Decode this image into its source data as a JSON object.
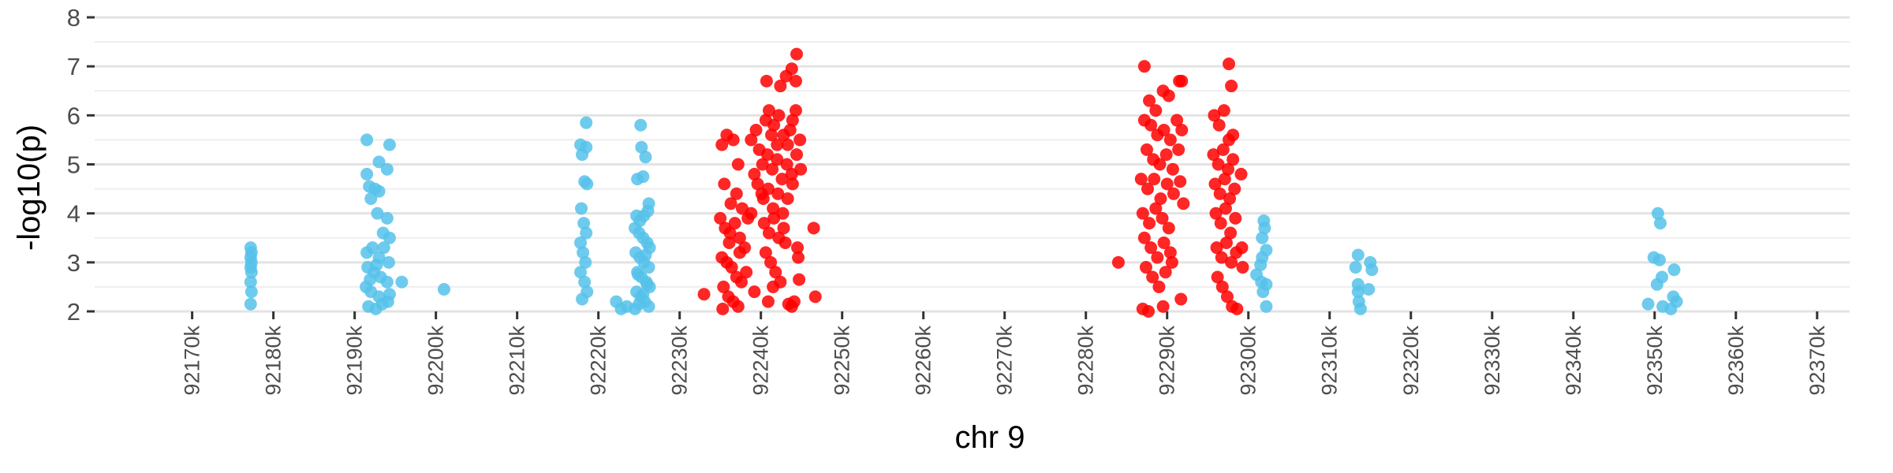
{
  "chart_data": {
    "type": "scatter",
    "title": "",
    "xlabel": "chr 9",
    "ylabel": "-log10(p)",
    "xlim": [
      92158000,
      92374000
    ],
    "ylim": [
      2,
      8
    ],
    "grid": "horizontal",
    "x_tick_labels": [
      "92170k",
      "92180k",
      "92190k",
      "92200k",
      "92210k",
      "92220k",
      "92230k",
      "92240k",
      "92250k",
      "92260k",
      "92270k",
      "92280k",
      "92290k",
      "92300k",
      "92310k",
      "92320k",
      "92330k",
      "92340k",
      "92350k",
      "92360k",
      "92370k"
    ],
    "y_tick_labels": [
      "2",
      "3",
      "4",
      "5",
      "6",
      "7",
      "8"
    ],
    "colors": {
      "background_snps": "#56c2ea",
      "highlighted_snps": "#ff0000"
    },
    "series": [
      {
        "color": "#56c2ea",
        "points": [
          [
            92177200,
            3.3
          ],
          [
            92177300,
            3.2
          ],
          [
            92177200,
            3.1
          ],
          [
            92177300,
            3.0
          ],
          [
            92177200,
            2.9
          ],
          [
            92177300,
            2.8
          ],
          [
            92177200,
            2.6
          ],
          [
            92177300,
            2.4
          ],
          [
            92177200,
            2.15
          ],
          [
            92191500,
            5.5
          ],
          [
            92193000,
            5.05
          ],
          [
            92194000,
            4.9
          ],
          [
            92194300,
            5.4
          ],
          [
            92191500,
            4.8
          ],
          [
            92191800,
            4.55
          ],
          [
            92192500,
            4.5
          ],
          [
            92193000,
            4.45
          ],
          [
            92192000,
            4.3
          ],
          [
            92192800,
            4.0
          ],
          [
            92193500,
            3.6
          ],
          [
            92194000,
            3.9
          ],
          [
            92191500,
            3.2
          ],
          [
            92192200,
            3.3
          ],
          [
            92193000,
            3.1
          ],
          [
            92194300,
            3.5
          ],
          [
            92191600,
            2.9
          ],
          [
            92192400,
            2.8
          ],
          [
            92193200,
            2.7
          ],
          [
            92194000,
            2.6
          ],
          [
            92191400,
            2.5
          ],
          [
            92192000,
            2.4
          ],
          [
            92193000,
            2.3
          ],
          [
            92194100,
            2.2
          ],
          [
            92191700,
            2.1
          ],
          [
            92192600,
            2.05
          ],
          [
            92193400,
            2.15
          ],
          [
            92194300,
            2.35
          ],
          [
            92191900,
            2.65
          ],
          [
            92192700,
            2.95
          ],
          [
            92193600,
            3.3
          ],
          [
            92194200,
            3.0
          ],
          [
            92195800,
            2.6
          ],
          [
            92201000,
            2.45
          ],
          [
            92217800,
            5.4
          ],
          [
            92218500,
            5.35
          ],
          [
            92218500,
            5.85
          ],
          [
            92218000,
            5.2
          ],
          [
            92218300,
            4.65
          ],
          [
            92218600,
            4.6
          ],
          [
            92217900,
            4.1
          ],
          [
            92218200,
            3.8
          ],
          [
            92218500,
            3.6
          ],
          [
            92217800,
            3.4
          ],
          [
            92218100,
            3.2
          ],
          [
            92218400,
            3.0
          ],
          [
            92217800,
            2.8
          ],
          [
            92218300,
            2.6
          ],
          [
            92218600,
            2.4
          ],
          [
            92218000,
            2.25
          ],
          [
            92222200,
            2.2
          ],
          [
            92222800,
            2.05
          ],
          [
            92223500,
            2.1
          ],
          [
            92225200,
            5.8
          ],
          [
            92225300,
            5.35
          ],
          [
            92225800,
            5.15
          ],
          [
            92224800,
            4.7
          ],
          [
            92225500,
            4.75
          ],
          [
            92226200,
            4.2
          ],
          [
            92224700,
            3.95
          ],
          [
            92225100,
            3.85
          ],
          [
            92225600,
            3.95
          ],
          [
            92226100,
            4.05
          ],
          [
            92224500,
            3.7
          ],
          [
            92225000,
            3.6
          ],
          [
            92225500,
            3.5
          ],
          [
            92226000,
            3.4
          ],
          [
            92226300,
            3.3
          ],
          [
            92224600,
            3.2
          ],
          [
            92225100,
            3.1
          ],
          [
            92225600,
            3.0
          ],
          [
            92226200,
            2.9
          ],
          [
            92224800,
            2.8
          ],
          [
            92225300,
            2.7
          ],
          [
            92225900,
            2.6
          ],
          [
            92226300,
            2.5
          ],
          [
            92224700,
            2.4
          ],
          [
            92225200,
            2.3
          ],
          [
            92225700,
            2.2
          ],
          [
            92226200,
            2.1
          ],
          [
            92224500,
            2.05
          ],
          [
            92225000,
            2.15
          ],
          [
            92225500,
            2.35
          ],
          [
            92226000,
            2.55
          ],
          [
            92224900,
            2.75
          ],
          [
            92225800,
            3.15
          ],
          [
            92301900,
            3.85
          ],
          [
            92302000,
            3.7
          ],
          [
            92301700,
            3.5
          ],
          [
            92302200,
            3.25
          ],
          [
            92301700,
            3.1
          ],
          [
            92301500,
            2.95
          ],
          [
            92301000,
            2.75
          ],
          [
            92301600,
            2.6
          ],
          [
            92302200,
            2.55
          ],
          [
            92301800,
            2.4
          ],
          [
            92302200,
            2.1
          ],
          [
            92313500,
            3.15
          ],
          [
            92313200,
            2.9
          ],
          [
            92315000,
            3.0
          ],
          [
            92315200,
            2.85
          ],
          [
            92313500,
            2.55
          ],
          [
            92313500,
            2.4
          ],
          [
            92314800,
            2.45
          ],
          [
            92313600,
            2.2
          ],
          [
            92313800,
            2.05
          ],
          [
            92350400,
            4.0
          ],
          [
            92350700,
            3.8
          ],
          [
            92349900,
            3.1
          ],
          [
            92350600,
            3.05
          ],
          [
            92352400,
            2.85
          ],
          [
            92350300,
            2.55
          ],
          [
            92350900,
            2.7
          ],
          [
            92352300,
            2.3
          ],
          [
            92352700,
            2.2
          ],
          [
            92349200,
            2.15
          ],
          [
            92351000,
            2.1
          ],
          [
            92352000,
            2.05
          ]
        ]
      },
      {
        "color": "#ff0000",
        "points": [
          [
            92233000,
            2.35
          ],
          [
            92235200,
            5.4
          ],
          [
            92235800,
            5.6
          ],
          [
            92236600,
            5.5
          ],
          [
            92237200,
            5.0
          ],
          [
            92235500,
            4.6
          ],
          [
            92236300,
            4.2
          ],
          [
            92237000,
            4.4
          ],
          [
            92237700,
            4.1
          ],
          [
            92235000,
            3.9
          ],
          [
            92235600,
            3.7
          ],
          [
            92236200,
            3.6
          ],
          [
            92236800,
            3.8
          ],
          [
            92237400,
            3.5
          ],
          [
            92238000,
            3.3
          ],
          [
            92235200,
            3.1
          ],
          [
            92235800,
            3.0
          ],
          [
            92236400,
            2.9
          ],
          [
            92237000,
            2.7
          ],
          [
            92237600,
            2.6
          ],
          [
            92238200,
            2.8
          ],
          [
            92235400,
            2.5
          ],
          [
            92236000,
            2.3
          ],
          [
            92236600,
            2.2
          ],
          [
            92237200,
            2.1
          ],
          [
            92235300,
            2.05
          ],
          [
            92236100,
            3.4
          ],
          [
            92237400,
            3.2
          ],
          [
            92238400,
            3.9
          ],
          [
            92238800,
            4.0
          ],
          [
            92239200,
            2.4
          ],
          [
            92238800,
            5.5
          ],
          [
            92239400,
            5.7
          ],
          [
            92239800,
            5.3
          ],
          [
            92239200,
            4.8
          ],
          [
            92239600,
            4.6
          ],
          [
            92240100,
            4.4
          ],
          [
            92240600,
            5.9
          ],
          [
            92241000,
            6.1
          ],
          [
            92241600,
            5.8
          ],
          [
            92242200,
            6.0
          ],
          [
            92242800,
            5.6
          ],
          [
            92243300,
            5.4
          ],
          [
            92243900,
            5.9
          ],
          [
            92244300,
            6.1
          ],
          [
            92244800,
            5.5
          ],
          [
            92240700,
            6.7
          ],
          [
            92242400,
            6.6
          ],
          [
            92243100,
            6.8
          ],
          [
            92243800,
            6.95
          ],
          [
            92244300,
            6.7
          ],
          [
            92244400,
            7.25
          ],
          [
            92240200,
            5.0
          ],
          [
            92240800,
            5.2
          ],
          [
            92241400,
            4.9
          ],
          [
            92242000,
            5.1
          ],
          [
            92242600,
            4.7
          ],
          [
            92243200,
            5.0
          ],
          [
            92243800,
            4.8
          ],
          [
            92244400,
            5.2
          ],
          [
            92244900,
            4.9
          ],
          [
            92240300,
            4.3
          ],
          [
            92240900,
            4.5
          ],
          [
            92241500,
            4.1
          ],
          [
            92242100,
            4.4
          ],
          [
            92242700,
            4.0
          ],
          [
            92243300,
            4.3
          ],
          [
            92243900,
            4.6
          ],
          [
            92240400,
            3.8
          ],
          [
            92241000,
            3.6
          ],
          [
            92241600,
            3.9
          ],
          [
            92242200,
            3.5
          ],
          [
            92242800,
            3.7
          ],
          [
            92240600,
            3.2
          ],
          [
            92241200,
            3.0
          ],
          [
            92241800,
            2.8
          ],
          [
            92242400,
            2.6
          ],
          [
            92243000,
            3.4
          ],
          [
            92244500,
            3.3
          ],
          [
            92244600,
            3.1
          ],
          [
            92246500,
            3.7
          ],
          [
            92240900,
            2.2
          ],
          [
            92241500,
            2.5
          ],
          [
            92243400,
            2.15
          ],
          [
            92243800,
            2.1
          ],
          [
            92244100,
            2.2
          ],
          [
            92244700,
            2.65
          ],
          [
            92246700,
            2.3
          ],
          [
            92242000,
            5.4
          ],
          [
            92243600,
            5.7
          ],
          [
            92241300,
            5.6
          ],
          [
            92284000,
            3.0
          ],
          [
            92287200,
            7.0
          ],
          [
            92287800,
            6.3
          ],
          [
            92288600,
            6.1
          ],
          [
            92289500,
            6.5
          ],
          [
            92290200,
            6.4
          ],
          [
            92291500,
            6.7
          ],
          [
            92291800,
            6.7
          ],
          [
            92287200,
            5.9
          ],
          [
            92288000,
            5.8
          ],
          [
            92288800,
            5.6
          ],
          [
            92289600,
            5.7
          ],
          [
            92290400,
            5.5
          ],
          [
            92291200,
            5.9
          ],
          [
            92291800,
            5.7
          ],
          [
            92291400,
            5.3
          ],
          [
            92287500,
            5.3
          ],
          [
            92288300,
            5.1
          ],
          [
            92289100,
            5.0
          ],
          [
            92289900,
            5.2
          ],
          [
            92290700,
            4.9
          ],
          [
            92286800,
            4.7
          ],
          [
            92287600,
            4.5
          ],
          [
            92288400,
            4.7
          ],
          [
            92289200,
            4.3
          ],
          [
            92290000,
            4.6
          ],
          [
            92290800,
            4.4
          ],
          [
            92291600,
            4.65
          ],
          [
            92292000,
            4.2
          ],
          [
            92287000,
            4.0
          ],
          [
            92287800,
            3.8
          ],
          [
            92288600,
            4.1
          ],
          [
            92289400,
            3.9
          ],
          [
            92290200,
            3.7
          ],
          [
            92287200,
            3.5
          ],
          [
            92288000,
            3.3
          ],
          [
            92288800,
            3.1
          ],
          [
            92289600,
            3.4
          ],
          [
            92290400,
            3.2
          ],
          [
            92287400,
            2.9
          ],
          [
            92288200,
            2.7
          ],
          [
            92289000,
            2.5
          ],
          [
            92289800,
            2.8
          ],
          [
            92290600,
            3.0
          ],
          [
            92287000,
            2.05
          ],
          [
            92287700,
            2.0
          ],
          [
            92289500,
            2.1
          ],
          [
            92291700,
            2.25
          ],
          [
            92295800,
            6.0
          ],
          [
            92296400,
            5.8
          ],
          [
            92297000,
            6.1
          ],
          [
            92297600,
            5.5
          ],
          [
            92298100,
            5.6
          ],
          [
            92297600,
            7.05
          ],
          [
            92297900,
            6.6
          ],
          [
            92295700,
            5.2
          ],
          [
            92296300,
            5.0
          ],
          [
            92296900,
            5.3
          ],
          [
            92297500,
            4.9
          ],
          [
            92298100,
            5.1
          ],
          [
            92295900,
            4.6
          ],
          [
            92296500,
            4.4
          ],
          [
            92297100,
            4.7
          ],
          [
            92297700,
            4.3
          ],
          [
            92298300,
            4.5
          ],
          [
            92299100,
            4.8
          ],
          [
            92296000,
            4.0
          ],
          [
            92296600,
            3.8
          ],
          [
            92297200,
            4.1
          ],
          [
            92297800,
            3.6
          ],
          [
            92298400,
            3.9
          ],
          [
            92296100,
            3.3
          ],
          [
            92296700,
            3.1
          ],
          [
            92297300,
            3.4
          ],
          [
            92297900,
            3.0
          ],
          [
            92298500,
            3.2
          ],
          [
            92299300,
            2.9
          ],
          [
            92296200,
            2.7
          ],
          [
            92296800,
            2.5
          ],
          [
            92297400,
            2.3
          ],
          [
            92298000,
            2.1
          ],
          [
            92298600,
            2.05
          ],
          [
            92299200,
            3.3
          ]
        ]
      }
    ]
  }
}
